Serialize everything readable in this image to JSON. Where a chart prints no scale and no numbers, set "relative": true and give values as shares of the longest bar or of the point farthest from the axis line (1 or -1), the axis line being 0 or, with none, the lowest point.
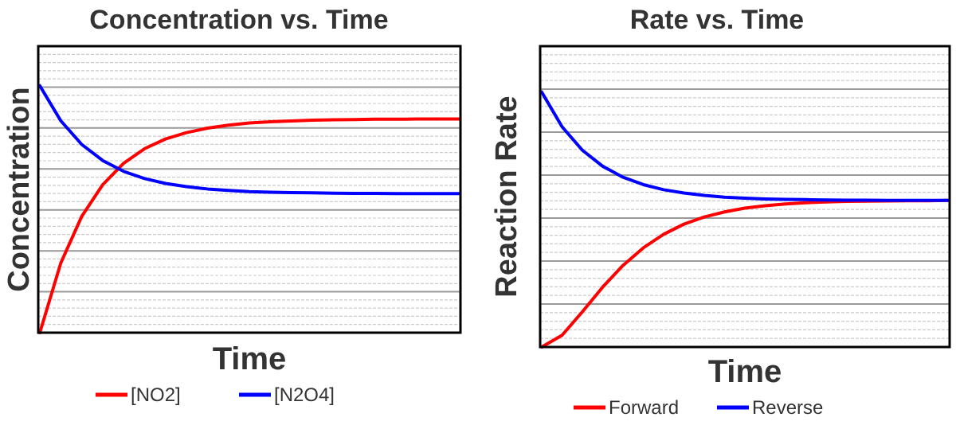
{
  "chart_data": [
    {
      "type": "line",
      "title": "Concentration vs. Time",
      "xlabel": "Time",
      "ylabel": "Concentration",
      "relative": true,
      "grid": true,
      "legend": "bottom",
      "line_style": "solid",
      "categories": [
        null,
        null,
        null,
        null,
        null,
        null,
        null,
        null,
        null,
        null,
        null,
        null,
        null,
        null,
        null,
        null,
        null,
        null,
        null,
        null,
        null
      ],
      "series": [
        {
          "name": "[NO2]",
          "color": "#ff0000",
          "values": [
            0,
            0.282,
            0.471,
            0.599,
            0.686,
            0.745,
            0.784,
            0.81,
            0.828,
            0.84,
            0.849,
            0.854,
            0.857,
            0.86,
            0.862,
            0.863,
            0.864,
            0.864,
            0.865,
            0.865,
            0.865
          ]
        },
        {
          "name": "[N2O4]",
          "color": "#0000ff",
          "values": [
            1,
            0.858,
            0.762,
            0.697,
            0.653,
            0.624,
            0.604,
            0.591,
            0.582,
            0.576,
            0.571,
            0.569,
            0.567,
            0.566,
            0.565,
            0.564,
            0.564,
            0.563,
            0.563,
            0.563,
            0.563
          ]
        }
      ]
    },
    {
      "type": "line",
      "title": "Rate vs. Time",
      "xlabel": "Time",
      "ylabel": "Reaction Rate",
      "relative": true,
      "grid": true,
      "legend": "bottom",
      "line_style": "solid",
      "categories": [
        null,
        null,
        null,
        null,
        null,
        null,
        null,
        null,
        null,
        null,
        null,
        null,
        null,
        null,
        null,
        null,
        null,
        null,
        null,
        null,
        null
      ],
      "series": [
        {
          "name": "Forward",
          "color": "#ff0000",
          "values": [
            0,
            0.046,
            0.138,
            0.235,
            0.32,
            0.389,
            0.442,
            0.482,
            0.51,
            0.53,
            0.545,
            0.554,
            0.561,
            0.566,
            0.569,
            0.571,
            0.572,
            0.573,
            0.574,
            0.574,
            0.575
          ]
        },
        {
          "name": "Reverse",
          "color": "#0000ff",
          "values": [
            1,
            0.864,
            0.772,
            0.709,
            0.666,
            0.637,
            0.617,
            0.604,
            0.595,
            0.588,
            0.584,
            0.581,
            0.579,
            0.578,
            0.577,
            0.576,
            0.576,
            0.575,
            0.575,
            0.575,
            0.575
          ]
        }
      ]
    }
  ]
}
